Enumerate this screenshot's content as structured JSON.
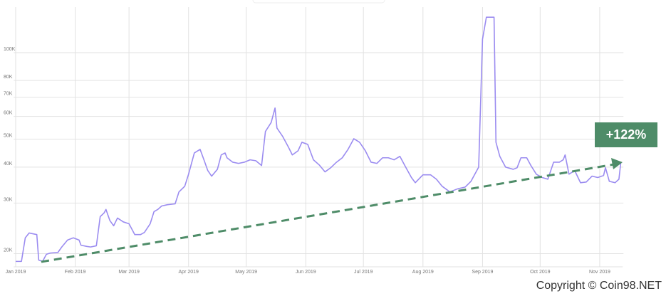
{
  "chart_data": {
    "type": "line",
    "x": [
      0,
      3,
      5,
      7,
      11,
      12,
      14,
      16,
      18,
      22,
      24,
      27,
      30,
      33,
      34,
      37,
      39,
      42,
      44,
      46,
      47,
      49,
      51,
      53,
      56,
      59,
      62,
      65,
      67,
      70,
      72,
      74,
      76,
      79,
      83,
      85,
      88,
      90,
      93,
      96,
      98,
      100,
      102,
      105,
      107,
      109,
      110,
      113,
      116,
      119,
      122,
      125,
      128,
      130,
      133,
      135,
      136,
      139,
      142,
      144,
      147,
      149,
      152,
      155,
      158,
      161,
      164,
      167,
      170,
      173,
      176,
      179,
      182,
      185,
      188,
      191,
      194,
      197,
      200,
      203,
      206,
      208,
      212,
      216,
      219,
      222,
      226,
      230,
      234,
      237,
      241,
      243,
      245,
      249,
      250,
      252,
      255,
      259,
      261,
      263,
      266,
      268,
      271,
      274,
      277,
      280,
      283,
      285,
      286,
      288,
      291,
      294,
      297,
      300,
      303,
      306,
      307,
      309,
      312,
      314,
      315
    ],
    "series": [
      {
        "color": "#9b8cf0",
        "values": [
          18800,
          18800,
          22700,
          23600,
          23300,
          19000,
          18800,
          19900,
          20100,
          20200,
          21100,
          22300,
          22700,
          22300,
          21400,
          21200,
          21100,
          21300,
          26900,
          27700,
          28500,
          26100,
          25000,
          26600,
          25800,
          25400,
          23300,
          23300,
          23700,
          25400,
          28000,
          28500,
          29300,
          29600,
          29800,
          32800,
          34300,
          37800,
          44800,
          46100,
          42400,
          38900,
          37200,
          39300,
          44100,
          44800,
          43100,
          41600,
          41200,
          41600,
          42400,
          42100,
          40500,
          53200,
          57200,
          64200,
          54700,
          51100,
          46900,
          44100,
          45600,
          48800,
          48000,
          42400,
          40700,
          38500,
          39800,
          41600,
          43100,
          46100,
          50200,
          48800,
          45600,
          41600,
          41200,
          43100,
          43100,
          42400,
          43600,
          40000,
          36800,
          35300,
          37600,
          37600,
          36300,
          34300,
          32800,
          33600,
          34100,
          35700,
          40000,
          111400,
          132800,
          132800,
          48800,
          43600,
          40000,
          39300,
          39800,
          43100,
          43100,
          40700,
          37800,
          36800,
          36300,
          41600,
          41600,
          42400,
          44100,
          37800,
          38900,
          35300,
          35500,
          37200,
          36800,
          37400,
          39800,
          35700,
          35300,
          36300,
          41600
        ]
      }
    ],
    "xlim": [
      -1,
      316
    ],
    "xticks": [
      {
        "value": 0,
        "label": "Jan 2019"
      },
      {
        "value": 31,
        "label": "Feb 2019"
      },
      {
        "value": 59,
        "label": "Mar 2019"
      },
      {
        "value": 90,
        "label": "Apr 2019"
      },
      {
        "value": 120,
        "label": "May 2019"
      },
      {
        "value": 151,
        "label": "Jun 2019"
      },
      {
        "value": 181,
        "label": "Jul 2019"
      },
      {
        "value": 212,
        "label": "Aug 2019"
      },
      {
        "value": 243,
        "label": "Sep 2019"
      },
      {
        "value": 273,
        "label": "Oct 2019"
      },
      {
        "value": 304,
        "label": "Nov 2019"
      }
    ],
    "ylim": [
      18000,
      144000
    ],
    "yticks": [
      {
        "value": 20000,
        "label": "20K"
      },
      {
        "value": 30000,
        "label": "30K"
      },
      {
        "value": 40000,
        "label": "40K"
      },
      {
        "value": 50000,
        "label": "50K"
      },
      {
        "value": 60000,
        "label": "60K"
      },
      {
        "value": 70000,
        "label": "70K"
      },
      {
        "value": 80000,
        "label": "80K"
      },
      {
        "value": 100000,
        "label": "100K"
      }
    ],
    "log_scale": true,
    "grid": true,
    "annotation": "+122%"
  },
  "footer": {
    "copyright": "Copyright © Coin98.NET"
  }
}
